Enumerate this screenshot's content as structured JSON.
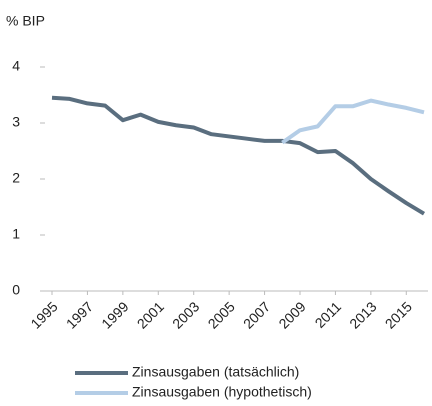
{
  "chart_data": {
    "type": "line",
    "y_axis_label": "% BIP",
    "x": [
      1995,
      1996,
      1997,
      1998,
      1999,
      2000,
      2001,
      2002,
      2003,
      2004,
      2005,
      2006,
      2007,
      2008,
      2009,
      2010,
      2011,
      2012,
      2013,
      2014,
      2015,
      2016
    ],
    "xlim": [
      1995,
      2016
    ],
    "xticks": [
      1995,
      1997,
      1999,
      2001,
      2003,
      2005,
      2007,
      2009,
      2011,
      2013,
      2015
    ],
    "ylim": [
      0,
      4
    ],
    "yticks": [
      0,
      1,
      2,
      3,
      4
    ],
    "series": [
      {
        "name": "Zinsausgaben (tatsächlich)",
        "color": "#5a6e7f",
        "values": [
          3.45,
          3.43,
          3.35,
          3.31,
          3.05,
          3.15,
          3.02,
          2.96,
          2.92,
          2.8,
          2.76,
          2.72,
          2.68,
          2.68,
          2.64,
          2.48,
          2.5,
          2.28,
          2.0,
          1.78,
          1.57,
          1.38
        ]
      },
      {
        "name": "Zinsausgaben (hypothetisch)",
        "color": "#b4cde6",
        "values": [
          null,
          null,
          null,
          null,
          null,
          null,
          null,
          null,
          null,
          null,
          null,
          null,
          null,
          2.65,
          2.87,
          2.94,
          3.3,
          3.3,
          3.4,
          3.33,
          3.27,
          3.19
        ]
      }
    ]
  }
}
